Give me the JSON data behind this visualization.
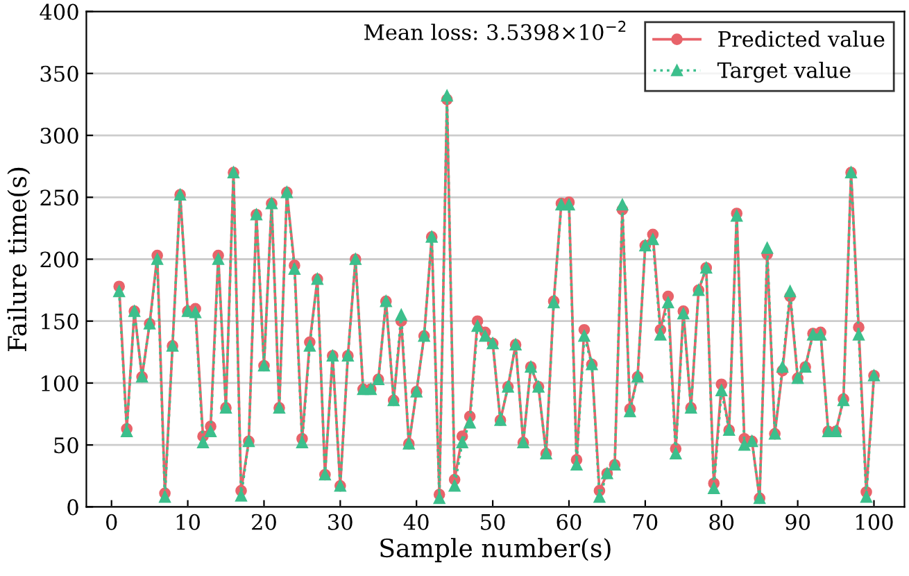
{
  "chart_data": {
    "type": "line",
    "xlabel": "Sample number(s)",
    "ylabel": "Failure time(s)",
    "annotations": [
      "Mean loss: 3.5398×10$^{−2}$"
    ],
    "x": [
      1,
      2,
      3,
      4,
      5,
      6,
      7,
      8,
      9,
      10,
      11,
      12,
      13,
      14,
      15,
      16,
      17,
      18,
      19,
      20,
      21,
      22,
      23,
      24,
      25,
      26,
      27,
      28,
      29,
      30,
      31,
      32,
      33,
      34,
      35,
      36,
      37,
      38,
      39,
      40,
      41,
      42,
      43,
      44,
      45,
      46,
      47,
      48,
      49,
      50,
      51,
      52,
      53,
      54,
      55,
      56,
      57,
      58,
      59,
      60,
      61,
      62,
      63,
      64,
      65,
      66,
      67,
      68,
      69,
      70,
      71,
      72,
      73,
      74,
      75,
      76,
      77,
      78,
      79,
      80,
      81,
      82,
      83,
      84,
      85,
      86,
      87,
      88,
      89,
      90,
      91,
      92,
      93,
      94,
      95,
      96,
      97,
      98,
      99,
      100
    ],
    "series": [
      {
        "name": "Predicted value",
        "color": "#e8636a",
        "marker": "circle",
        "line_style": "solid",
        "values": [
          178,
          63,
          158,
          105,
          148,
          203,
          11,
          130,
          252,
          158,
          160,
          57,
          65,
          203,
          80,
          270,
          13,
          53,
          236,
          114,
          245,
          80,
          254,
          195,
          55,
          133,
          184,
          26,
          122,
          17,
          122,
          200,
          95,
          95,
          103,
          166,
          86,
          150,
          51,
          93,
          138,
          218,
          10,
          329,
          22,
          57,
          73,
          150,
          141,
          132,
          70,
          97,
          131,
          52,
          113,
          97,
          43,
          166,
          245,
          246,
          38,
          143,
          115,
          13,
          27,
          34,
          240,
          79,
          105,
          211,
          220,
          143,
          170,
          47,
          158,
          80,
          175,
          193,
          19,
          99,
          62,
          237,
          55,
          53,
          7,
          204,
          59,
          110,
          170,
          104,
          113,
          140,
          141,
          61,
          61,
          87,
          270,
          145,
          12,
          106
        ]
      },
      {
        "name": "Target value",
        "color": "#3cbf8c",
        "marker": "triangle",
        "line_style": "dotted",
        "values": [
          174,
          61,
          158,
          105,
          148,
          200,
          8,
          130,
          252,
          158,
          157,
          52,
          61,
          200,
          80,
          270,
          9,
          53,
          236,
          114,
          245,
          80,
          254,
          192,
          52,
          130,
          184,
          26,
          122,
          17,
          122,
          200,
          95,
          95,
          103,
          166,
          86,
          155,
          51,
          93,
          138,
          218,
          7,
          332,
          17,
          52,
          68,
          146,
          138,
          132,
          70,
          97,
          131,
          52,
          113,
          97,
          43,
          165,
          244,
          244,
          34,
          138,
          115,
          8,
          27,
          34,
          244,
          77,
          105,
          211,
          216,
          139,
          165,
          43,
          156,
          80,
          175,
          193,
          15,
          94,
          62,
          235,
          50,
          53,
          7,
          209,
          59,
          113,
          174,
          104,
          113,
          139,
          139,
          61,
          61,
          86,
          270,
          139,
          8,
          106
        ]
      }
    ],
    "xlim": [
      -3.3,
      104
    ],
    "xticks": [
      0,
      10,
      20,
      30,
      40,
      50,
      60,
      70,
      80,
      90,
      100
    ],
    "ylim": [
      0,
      400
    ],
    "yticks": [
      0,
      50,
      100,
      150,
      200,
      250,
      300,
      350,
      400
    ],
    "grid": "y",
    "legend": "top right"
  }
}
